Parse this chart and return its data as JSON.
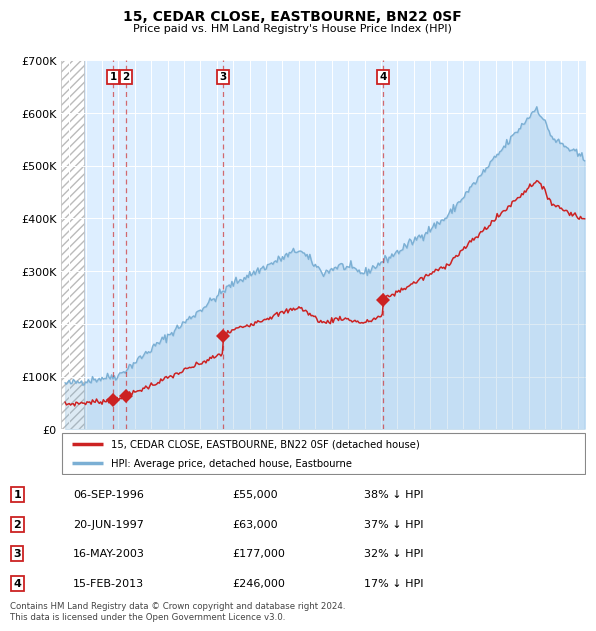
{
  "title": "15, CEDAR CLOSE, EASTBOURNE, BN22 0SF",
  "subtitle": "Price paid vs. HM Land Registry's House Price Index (HPI)",
  "sale_dates": [
    1996.68,
    1997.47,
    2003.37,
    2013.12
  ],
  "sale_prices": [
    55000,
    63000,
    177000,
    246000
  ],
  "sale_labels": [
    "1",
    "2",
    "3",
    "4"
  ],
  "hpi_color": "#7bafd4",
  "hpi_fill_color": "#c8dff0",
  "red_color": "#cc2222",
  "bg_color": "#ddeeff",
  "grid_color": "#ffffff",
  "hatch_color": "#cccccc",
  "table_data": [
    [
      "1",
      "06-SEP-1996",
      "£55,000",
      "38% ↓ HPI"
    ],
    [
      "2",
      "20-JUN-1997",
      "£63,000",
      "37% ↓ HPI"
    ],
    [
      "3",
      "16-MAY-2003",
      "£177,000",
      "32% ↓ HPI"
    ],
    [
      "4",
      "15-FEB-2013",
      "£246,000",
      "17% ↓ HPI"
    ]
  ],
  "legend_label_red": "15, CEDAR CLOSE, EASTBOURNE, BN22 0SF (detached house)",
  "legend_label_blue": "HPI: Average price, detached house, Eastbourne",
  "footer": "Contains HM Land Registry data © Crown copyright and database right 2024.\nThis data is licensed under the Open Government Licence v3.0.",
  "ylim_min": 0,
  "ylim_max": 700000,
  "xlim_min": 1993.5,
  "xlim_max": 2025.5,
  "hatch_end": 1994.92
}
